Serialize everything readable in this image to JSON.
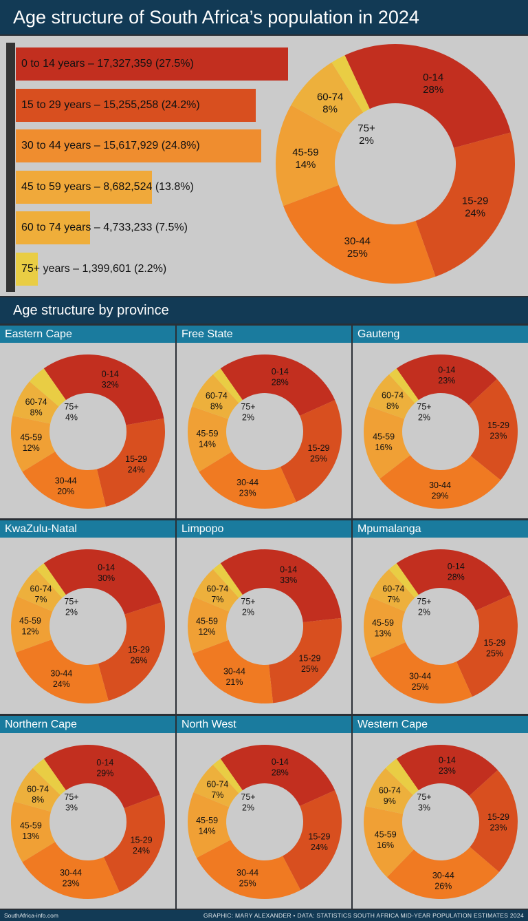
{
  "title": "Age structure of South Africa’s population in 2024",
  "section_title": "Age structure by province",
  "colors": [
    "#c22f1f",
    "#d84f1f",
    "#f07a22",
    "#f0a035",
    "#edb03c",
    "#e9cd44"
  ],
  "bar_colors": [
    "#c22f1f",
    "#d84f1f",
    "#ef8d2f",
    "#f0a93a",
    "#efae3a",
    "#e9cd44"
  ],
  "chart_data": [
    {
      "type": "bar",
      "orientation": "horizontal",
      "categories": [
        "0 to 14 years",
        "15 to 29 years",
        "30 to 44 years",
        "45 to 59 years",
        "60 to 74 years",
        "75+ years"
      ],
      "values": [
        17327359,
        15255258,
        15617929,
        8682524,
        4733233,
        1399601
      ],
      "value_labels": [
        "17,327,359",
        "15,255,258",
        "15,617,929",
        "8,682,524",
        "4,733,233",
        "1,399,601"
      ],
      "percent_labels": [
        "27.5%",
        "24.2%",
        "24.8%",
        "13.8%",
        "7.5%",
        "2.2%"
      ],
      "separator": "–"
    },
    {
      "type": "pie",
      "name": "national",
      "categories": [
        "0-14",
        "15-29",
        "30-44",
        "45-59",
        "60-74",
        "75+"
      ],
      "values": [
        28,
        24,
        25,
        14,
        8,
        2
      ]
    }
  ],
  "provinces": [
    {
      "name": "Eastern Cape",
      "categories": [
        "0-14",
        "15-29",
        "30-44",
        "45-59",
        "60-74",
        "75+"
      ],
      "values": [
        32,
        24,
        20,
        12,
        8,
        4
      ]
    },
    {
      "name": "Free State",
      "categories": [
        "0-14",
        "15-29",
        "30-44",
        "45-59",
        "60-74",
        "75+"
      ],
      "values": [
        28,
        25,
        23,
        14,
        8,
        2
      ]
    },
    {
      "name": "Gauteng",
      "categories": [
        "0-14",
        "15-29",
        "30-44",
        "45-59",
        "60-74",
        "75+"
      ],
      "values": [
        23,
        23,
        29,
        16,
        8,
        2
      ]
    },
    {
      "name": "KwaZulu-Natal",
      "categories": [
        "0-14",
        "15-29",
        "30-44",
        "45-59",
        "60-74",
        "75+"
      ],
      "values": [
        30,
        26,
        24,
        12,
        7,
        2
      ]
    },
    {
      "name": "Limpopo",
      "categories": [
        "0-14",
        "15-29",
        "30-44",
        "45-59",
        "60-74",
        "75+"
      ],
      "values": [
        33,
        25,
        21,
        12,
        7,
        2
      ]
    },
    {
      "name": "Mpumalanga",
      "categories": [
        "0-14",
        "15-29",
        "30-44",
        "45-59",
        "60-74",
        "75+"
      ],
      "values": [
        28,
        25,
        25,
        13,
        7,
        2
      ]
    },
    {
      "name": "Northern Cape",
      "categories": [
        "0-14",
        "15-29",
        "30-44",
        "45-59",
        "60-74",
        "75+"
      ],
      "values": [
        29,
        24,
        23,
        13,
        8,
        3
      ]
    },
    {
      "name": "North West",
      "categories": [
        "0-14",
        "15-29",
        "30-44",
        "45-59",
        "60-74",
        "75+"
      ],
      "values": [
        28,
        24,
        25,
        14,
        7,
        2
      ]
    },
    {
      "name": "Western Cape",
      "categories": [
        "0-14",
        "15-29",
        "30-44",
        "45-59",
        "60-74",
        "75+"
      ],
      "values": [
        23,
        23,
        26,
        16,
        9,
        3
      ]
    }
  ],
  "footer": {
    "site": "SouthAfrica-info.com",
    "credit": "GRAPHIC: MARY ALEXANDER • DATA: STATISTICS SOUTH AFRICA MID-YEAR POPULATION ESTIMATES 2024"
  }
}
